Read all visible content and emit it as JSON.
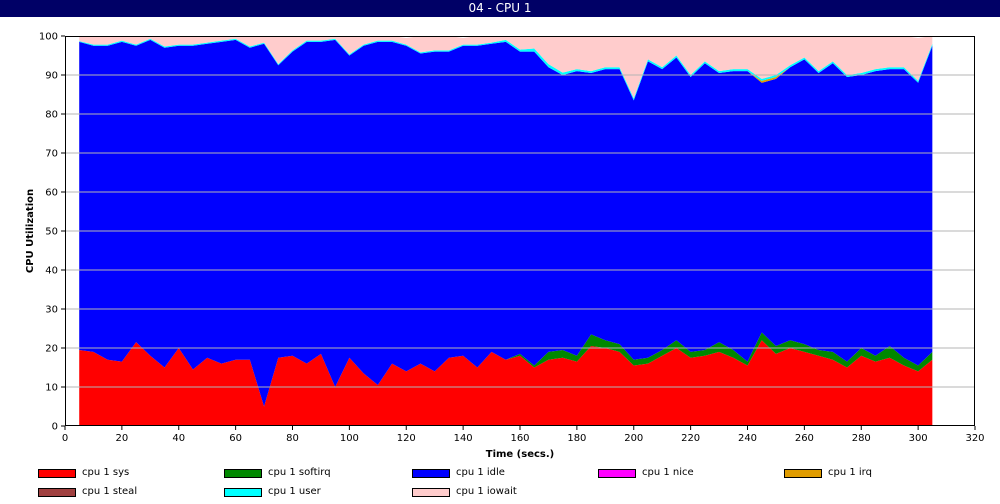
{
  "window": {
    "title": "04 - CPU 1"
  },
  "chart_data": {
    "type": "area",
    "stacked": true,
    "title": "",
    "xlabel": "Time (secs.)",
    "ylabel": "CPU Utilization",
    "xlim": [
      0,
      320
    ],
    "ylim": [
      0,
      100
    ],
    "xticks": [
      "0",
      "20",
      "40",
      "60",
      "80",
      "100",
      "120",
      "140",
      "160",
      "180",
      "200",
      "220",
      "240",
      "260",
      "280",
      "300",
      "320"
    ],
    "yticks": [
      "0",
      "10",
      "20",
      "30",
      "40",
      "50",
      "60",
      "70",
      "80",
      "90",
      "100"
    ],
    "grid": "horizontal",
    "legend_position": "bottom",
    "x": [
      5,
      10,
      15,
      20,
      25,
      30,
      35,
      40,
      45,
      50,
      55,
      60,
      65,
      70,
      75,
      80,
      85,
      90,
      95,
      100,
      105,
      110,
      115,
      120,
      125,
      130,
      135,
      140,
      145,
      150,
      155,
      160,
      165,
      170,
      175,
      180,
      185,
      190,
      195,
      200,
      205,
      210,
      215,
      220,
      225,
      230,
      235,
      240,
      245,
      250,
      255,
      260,
      265,
      270,
      275,
      280,
      285,
      290,
      295,
      300,
      305
    ],
    "series": [
      {
        "name": "cpu 1 sys",
        "color": "#ff0000",
        "values": [
          19.5,
          19,
          17,
          16.5,
          21.5,
          18,
          15,
          20,
          14.5,
          17.5,
          16,
          17,
          17,
          5,
          17.5,
          18,
          16,
          18.5,
          10,
          17.5,
          13.5,
          10.5,
          16,
          14,
          16,
          14,
          17.5,
          18,
          15,
          19,
          17,
          18,
          15,
          17,
          17.5,
          16.5,
          20.5,
          20,
          19,
          15.5,
          16,
          18,
          20,
          17.5,
          18,
          19,
          17.5,
          15.5,
          22,
          18.5,
          20,
          19,
          18,
          17,
          15,
          18,
          16.5,
          17.5,
          15.5,
          14,
          17
        ]
      },
      {
        "name": "cpu 1 softirq",
        "color": "#008800",
        "values": [
          0,
          0,
          0,
          0,
          0,
          0,
          0,
          0,
          0,
          0,
          0,
          0,
          0,
          0,
          0,
          0,
          0,
          0,
          0,
          0,
          0,
          0,
          0,
          0,
          0,
          0,
          0,
          0,
          0,
          0,
          0,
          0.5,
          0.5,
          2,
          2,
          1.5,
          3,
          2,
          2,
          1.5,
          1.5,
          1.5,
          2,
          1.5,
          1.5,
          2.5,
          2,
          1,
          2,
          2,
          2,
          2,
          1.5,
          2,
          1.5,
          2,
          1.5,
          3,
          2,
          1.5,
          2
        ]
      },
      {
        "name": "cpu 1 idle",
        "color": "#0000ff",
        "values": [
          79,
          78.5,
          80.5,
          82,
          76,
          81,
          82,
          77.5,
          83,
          80.5,
          82.5,
          82,
          80,
          93,
          75,
          78,
          82.5,
          80,
          89,
          77.5,
          84,
          88,
          82.5,
          83.5,
          79.5,
          82,
          78.5,
          79.5,
          82.5,
          79,
          81.5,
          77.5,
          80.5,
          73,
          70.5,
          73,
          67,
          69.5,
          70.5,
          66.5,
          76,
          72,
          72.5,
          70.5,
          73.5,
          69,
          71.5,
          74.5,
          64,
          68.5,
          70,
          73,
          71,
          74,
          73,
          70,
          73,
          71,
          74,
          72.5,
          78.5
        ]
      },
      {
        "name": "cpu 1 nice",
        "color": "#ff00ff",
        "values": [
          0,
          0,
          0,
          0,
          0,
          0,
          0,
          0,
          0,
          0,
          0,
          0,
          0,
          0,
          0,
          0,
          0,
          0,
          0,
          0,
          0,
          0,
          0,
          0,
          0,
          0,
          0,
          0,
          0,
          0,
          0,
          0,
          0,
          0,
          0,
          0,
          0,
          0,
          0,
          0,
          0,
          0,
          0,
          0,
          0,
          0,
          0,
          0,
          0,
          0,
          0,
          0,
          0,
          0,
          0,
          0,
          0,
          0,
          0,
          0,
          0
        ]
      },
      {
        "name": "cpu 1 irq",
        "color": "#e09c00",
        "values": [
          0,
          0,
          0,
          0,
          0,
          0,
          0,
          0,
          0,
          0,
          0,
          0,
          0,
          0,
          0,
          0,
          0,
          0,
          0,
          0,
          0,
          0,
          0,
          0,
          0,
          0,
          0,
          0,
          0,
          0,
          0,
          0,
          0,
          0,
          0,
          0,
          0,
          0,
          0,
          0,
          0,
          0,
          0,
          0,
          0,
          0,
          0,
          0,
          0.5,
          0.5,
          0,
          0,
          0,
          0,
          0,
          0,
          0,
          0,
          0,
          0,
          0
        ]
      },
      {
        "name": "cpu 1 steal",
        "color": "#a04040",
        "values": [
          0,
          0,
          0,
          0,
          0,
          0,
          0,
          0,
          0,
          0,
          0,
          0,
          0,
          0,
          0,
          0,
          0,
          0,
          0,
          0,
          0,
          0,
          0,
          0,
          0,
          0,
          0,
          0,
          0,
          0,
          0,
          0,
          0,
          0,
          0,
          0,
          0,
          0,
          0,
          0,
          0,
          0,
          0,
          0,
          0,
          0,
          0,
          0,
          0,
          0,
          0,
          0,
          0,
          0,
          0,
          0,
          0,
          0,
          0,
          0,
          0
        ]
      },
      {
        "name": "cpu 1 user",
        "color": "#00ffff",
        "values": [
          0.2,
          0.3,
          0.3,
          0.3,
          0.3,
          0.3,
          0.3,
          0.3,
          0.3,
          0.3,
          0.3,
          0.3,
          0.3,
          0.3,
          0.3,
          0.3,
          0.3,
          0.3,
          0.3,
          0.3,
          0.3,
          0.3,
          0.3,
          0.3,
          0.3,
          0.3,
          0.3,
          0.3,
          0.3,
          0.3,
          0.5,
          0.5,
          0.8,
          0.8,
          0.6,
          0.5,
          0.5,
          0.5,
          0.5,
          0.5,
          0.5,
          0.5,
          0.5,
          0.5,
          0.5,
          0.5,
          0.5,
          0.5,
          0.5,
          0.5,
          0.5,
          0.5,
          0.5,
          0.5,
          0.5,
          0.5,
          0.5,
          0.5,
          0.5,
          0.5,
          0.5
        ]
      },
      {
        "name": "cpu 1 iowait",
        "color": "#ffcccc",
        "values": [
          1.3,
          2.2,
          2.2,
          1.2,
          2.2,
          0.7,
          2.7,
          2.2,
          2.2,
          1.7,
          1.2,
          0.7,
          2.7,
          1.7,
          7.2,
          3.7,
          1.2,
          1.2,
          0.7,
          4.7,
          2.2,
          1.2,
          1.2,
          1.7,
          4.2,
          3.7,
          3.7,
          1.7,
          2.2,
          1.7,
          1,
          3.5,
          3.2,
          7.2,
          9.4,
          8.5,
          9,
          8,
          8,
          16,
          6,
          8,
          5,
          10,
          6.5,
          9,
          8.5,
          8.5,
          11,
          10,
          7.5,
          5.5,
          9,
          6.5,
          10,
          9.5,
          8.5,
          8,
          8,
          11,
          2
        ]
      }
    ]
  }
}
